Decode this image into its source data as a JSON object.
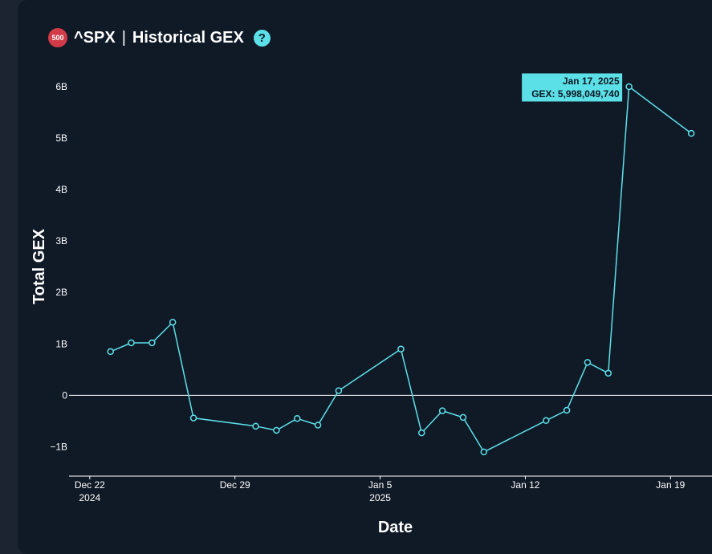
{
  "header": {
    "badge": "500",
    "ticker": "^SPX",
    "separator": "|",
    "chart_name": "Historical GEX",
    "help_glyph": "?"
  },
  "colors": {
    "background": "#101a27",
    "line": "#5ce0e8",
    "text": "#ffffff",
    "badge": "#d23a48"
  },
  "chart_data": {
    "type": "line",
    "title": "^SPX | Historical GEX",
    "xlabel": "Date",
    "ylabel": "Total GEX",
    "x_ticks": [
      {
        "date": "2024-12-22",
        "label": "Dec 22",
        "sublabel": "2024"
      },
      {
        "date": "2024-12-29",
        "label": "Dec 29",
        "sublabel": ""
      },
      {
        "date": "2025-01-05",
        "label": "Jan 5",
        "sublabel": "2025"
      },
      {
        "date": "2025-01-12",
        "label": "Jan 12",
        "sublabel": ""
      },
      {
        "date": "2025-01-19",
        "label": "Jan 19",
        "sublabel": ""
      }
    ],
    "y_ticks": [
      {
        "value": -1000000000,
        "label": "−1B"
      },
      {
        "value": 0,
        "label": "0"
      },
      {
        "value": 1000000000,
        "label": "1B"
      },
      {
        "value": 2000000000,
        "label": "2B"
      },
      {
        "value": 3000000000,
        "label": "3B"
      },
      {
        "value": 4000000000,
        "label": "4B"
      },
      {
        "value": 5000000000,
        "label": "5B"
      },
      {
        "value": 6000000000,
        "label": "6B"
      }
    ],
    "x_range": [
      "2024-12-21",
      "2025-01-21"
    ],
    "ylim": [
      -1570000000,
      6200000000
    ],
    "grid": false,
    "series": [
      {
        "points": [
          {
            "x": "2024-12-23",
            "y": 850000000
          },
          {
            "x": "2024-12-24",
            "y": 1020000000
          },
          {
            "x": "2024-12-25",
            "y": 1020000000
          },
          {
            "x": "2024-12-26",
            "y": 1420000000
          },
          {
            "x": "2024-12-27",
            "y": -440000000
          },
          {
            "x": "2024-12-30",
            "y": -600000000
          },
          {
            "x": "2024-12-31",
            "y": -680000000
          },
          {
            "x": "2025-01-01",
            "y": -450000000
          },
          {
            "x": "2025-01-02",
            "y": -580000000
          },
          {
            "x": "2025-01-03",
            "y": 90000000
          },
          {
            "x": "2025-01-06",
            "y": 900000000
          },
          {
            "x": "2025-01-07",
            "y": -730000000
          },
          {
            "x": "2025-01-08",
            "y": -300000000
          },
          {
            "x": "2025-01-09",
            "y": -430000000
          },
          {
            "x": "2025-01-10",
            "y": -1100000000
          },
          {
            "x": "2025-01-13",
            "y": -490000000
          },
          {
            "x": "2025-01-14",
            "y": -290000000
          },
          {
            "x": "2025-01-15",
            "y": 640000000
          },
          {
            "x": "2025-01-16",
            "y": 430000000
          },
          {
            "x": "2025-01-17",
            "y": 5998049740
          },
          {
            "x": "2025-01-20",
            "y": 5090000000
          }
        ]
      }
    ],
    "tooltip": {
      "point_x": "2025-01-17",
      "date_text": "Jan 17, 2025",
      "value_text": "GEX: 5,998,049,740"
    }
  }
}
